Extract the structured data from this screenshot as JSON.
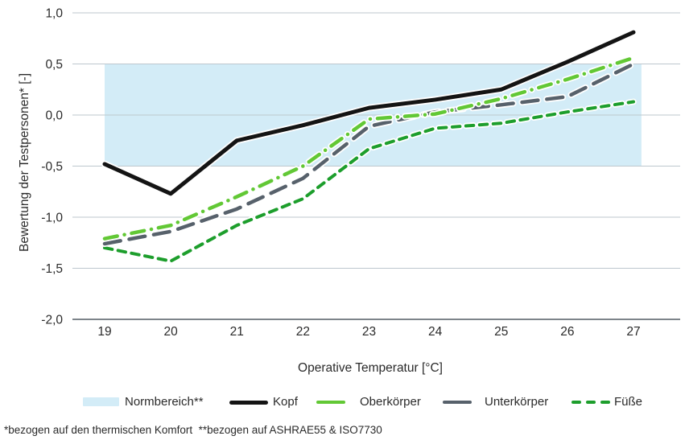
{
  "figure": {
    "footnote": "*bezogen auf den thermischen Komfort  **bezogen auf ASHRAE55 & ISO7730"
  },
  "colors": {
    "grid": "#bdc7ce",
    "axis": "#525b63",
    "text": "#2a2a2a",
    "halo": "#ffffff"
  },
  "chart_data": {
    "type": "line",
    "title": "",
    "xlabel": "Operative Temperatur [°C]",
    "ylabel": "Bewertung der Testpersonen* [-]",
    "x": [
      19,
      20,
      21,
      22,
      23,
      24,
      25,
      26,
      27
    ],
    "xtick_labels": [
      "19",
      "20",
      "21",
      "22",
      "23",
      "24",
      "25",
      "26",
      "27"
    ],
    "ylim": [
      -2.0,
      1.0
    ],
    "yticks": [
      1.0,
      0.5,
      0.0,
      -0.5,
      -1.0,
      -1.5,
      -2.0
    ],
    "ytick_labels": [
      "1,0",
      "0,5",
      "0,0",
      "-0,5",
      "-1,0",
      "-1,5",
      "-2,0"
    ],
    "grid": true,
    "legend_position": "bottom",
    "norm_band": {
      "label": "Normbereich**",
      "x_range": [
        19,
        27.12
      ],
      "y_range": [
        -0.5,
        0.5
      ],
      "color": "#d3ecf7"
    },
    "series": [
      {
        "name": "Kopf",
        "color": "#141414",
        "style": "solid",
        "width": 5,
        "values": [
          -0.48,
          -0.77,
          -0.25,
          -0.1,
          0.07,
          0.15,
          0.25,
          0.52,
          0.81
        ]
      },
      {
        "name": "Oberkörper",
        "color": "#62c835",
        "style": "dashdot",
        "width": 4.5,
        "values": [
          -1.21,
          -1.08,
          -0.8,
          -0.5,
          -0.04,
          0.01,
          0.16,
          0.35,
          0.56
        ]
      },
      {
        "name": "Unterkörper",
        "color": "#57616b",
        "style": "dash",
        "width": 4.5,
        "values": [
          -1.26,
          -1.14,
          -0.92,
          -0.62,
          -0.11,
          0.03,
          0.1,
          0.18,
          0.5
        ]
      },
      {
        "name": "Füße",
        "color": "#1d9e2c",
        "style": "shortdash",
        "width": 4,
        "values": [
          -1.3,
          -1.43,
          -1.08,
          -0.82,
          -0.33,
          -0.13,
          -0.08,
          0.03,
          0.13
        ]
      }
    ]
  }
}
